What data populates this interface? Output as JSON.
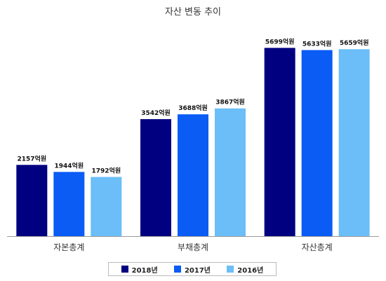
{
  "chart_data": {
    "type": "bar",
    "title": "자산 변동 추이",
    "categories": [
      "자본총계",
      "부채총계",
      "자산총계"
    ],
    "series": [
      {
        "name": "2018년",
        "color": "#000080",
        "values": [
          2157,
          3542,
          5699
        ],
        "labels": [
          "2157억원",
          "3542억원",
          "5699억원"
        ]
      },
      {
        "name": "2017년",
        "color": "#0a5cf5",
        "values": [
          1944,
          3688,
          5633
        ],
        "labels": [
          "1944억원",
          "3688억원",
          "5633억원"
        ]
      },
      {
        "name": "2016년",
        "color": "#6bbef7",
        "values": [
          1792,
          3867,
          5659
        ],
        "labels": [
          "1792억원",
          "3867억원",
          "5659억원"
        ]
      }
    ],
    "ylim": [
      0,
      6300
    ],
    "grid": false,
    "legend_position": "bottom"
  }
}
